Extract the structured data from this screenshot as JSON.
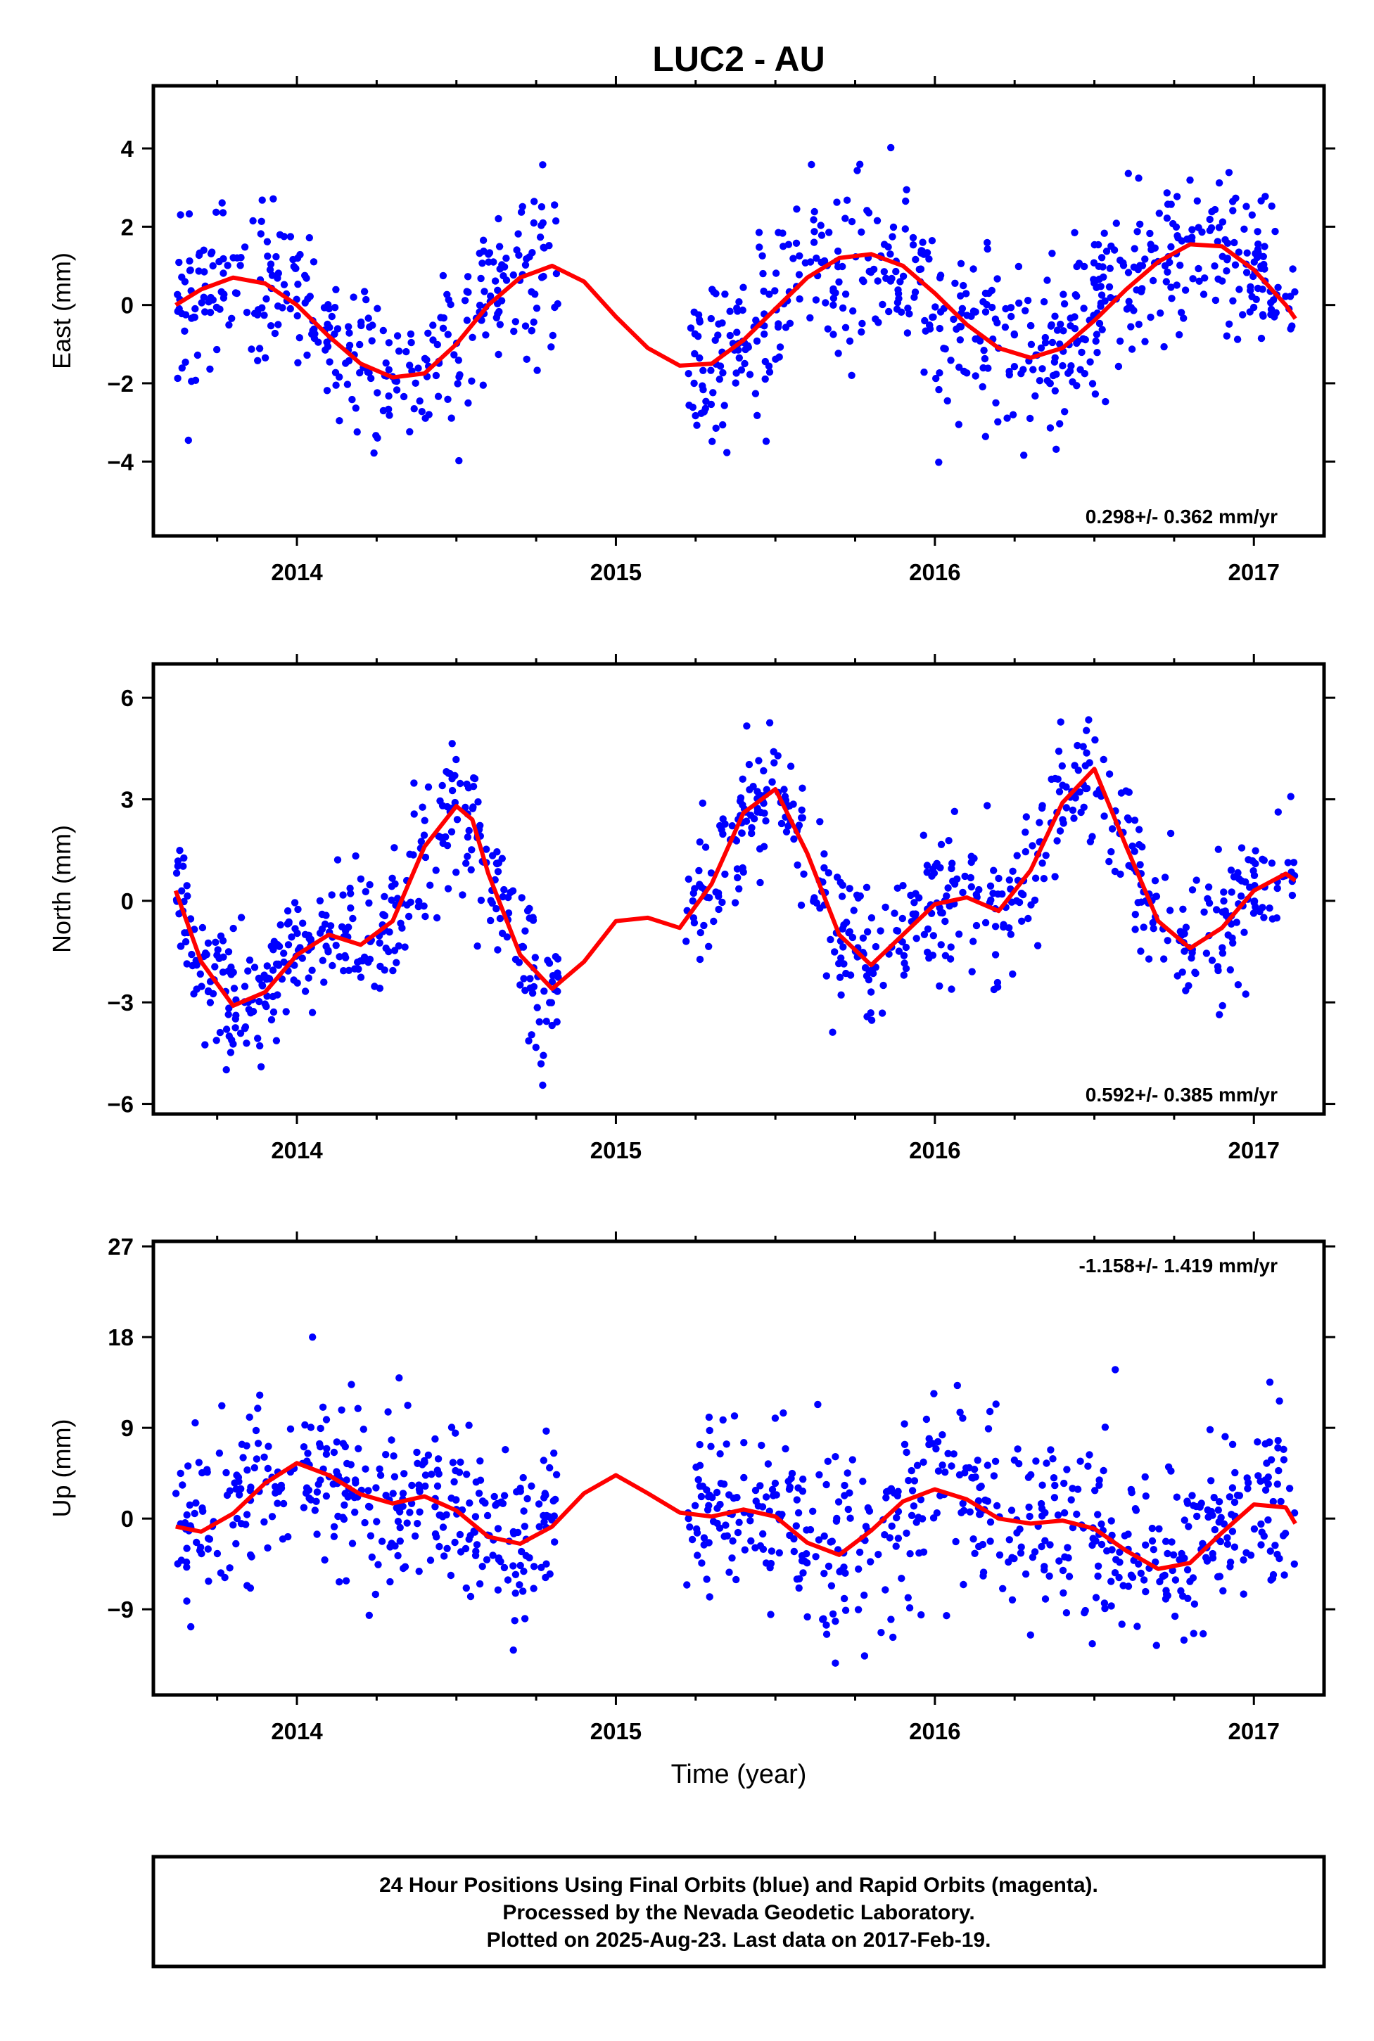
{
  "title": "LUC2 - AU",
  "xlabel": "Time (year)",
  "footer": {
    "line1": "24 Hour Positions Using Final Orbits (blue) and Rapid Orbits (magenta).",
    "line2": "Processed by the Nevada Geodetic Laboratory.",
    "line3": "Plotted on 2025-Aug-23. Last data on 2017-Feb-19."
  },
  "colors": {
    "points": "#0000ff",
    "fit": "#ff0000",
    "frame": "#000000"
  },
  "chart_data": [
    {
      "type": "scatter",
      "panel": "east",
      "ylabel": "East (mm)",
      "rate_label": "0.298+/- 0.362 mm/yr",
      "xlim": [
        2013.55,
        2017.22
      ],
      "ylim": [
        -5.9,
        5.6
      ],
      "x_ticks": [
        2014,
        2015,
        2016,
        2017
      ],
      "y_ticks": [
        -4,
        -2,
        0,
        2,
        4
      ],
      "y_tick_labels": [
        "−4",
        "−2",
        "0",
        "2",
        "4"
      ],
      "data_gap": [
        2014.82,
        2015.22
      ],
      "points_series": {
        "name": "Final Orbits",
        "color": "#0000ff",
        "approx_count": 900,
        "noise_sd_mm": 1.05
      },
      "fit": {
        "color": "#ff0000",
        "x": [
          2013.62,
          2013.7,
          2013.8,
          2013.9,
          2014.0,
          2014.1,
          2014.2,
          2014.3,
          2014.4,
          2014.5,
          2014.6,
          2014.7,
          2014.8,
          2014.9,
          2015.0,
          2015.1,
          2015.2,
          2015.3,
          2015.4,
          2015.5,
          2015.6,
          2015.7,
          2015.8,
          2015.9,
          2016.0,
          2016.1,
          2016.2,
          2016.3,
          2016.4,
          2016.5,
          2016.6,
          2016.7,
          2016.8,
          2016.9,
          2017.0,
          2017.1,
          2017.13
        ],
        "y": [
          0.0,
          0.4,
          0.7,
          0.55,
          0.0,
          -0.8,
          -1.5,
          -1.85,
          -1.75,
          -1.0,
          0.0,
          0.7,
          1.0,
          0.6,
          -0.3,
          -1.1,
          -1.55,
          -1.5,
          -0.9,
          -0.1,
          0.7,
          1.2,
          1.3,
          1.0,
          0.3,
          -0.5,
          -1.1,
          -1.35,
          -1.1,
          -0.4,
          0.4,
          1.1,
          1.55,
          1.5,
          0.9,
          0.0,
          -0.35
        ]
      }
    },
    {
      "type": "scatter",
      "panel": "north",
      "ylabel": "North (mm)",
      "rate_label": "0.592+/- 0.385 mm/yr",
      "xlim": [
        2013.55,
        2017.22
      ],
      "ylim": [
        -6.3,
        7.0
      ],
      "x_ticks": [
        2014,
        2015,
        2016,
        2017
      ],
      "y_ticks": [
        -6,
        -3,
        0,
        3,
        6
      ],
      "y_tick_labels": [
        "−6",
        "−3",
        "0",
        "3",
        "6"
      ],
      "data_gap": [
        2014.82,
        2015.22
      ],
      "points_series": {
        "name": "Final Orbits",
        "color": "#0000ff",
        "approx_count": 900,
        "noise_sd_mm": 1.0
      },
      "fit": {
        "color": "#ff0000",
        "x": [
          2013.62,
          2013.7,
          2013.8,
          2013.9,
          2014.0,
          2014.1,
          2014.2,
          2014.3,
          2014.4,
          2014.5,
          2014.55,
          2014.6,
          2014.7,
          2014.8,
          2014.9,
          2015.0,
          2015.1,
          2015.2,
          2015.3,
          2015.4,
          2015.5,
          2015.6,
          2015.7,
          2015.8,
          2015.9,
          2016.0,
          2016.1,
          2016.2,
          2016.3,
          2016.4,
          2016.5,
          2016.6,
          2016.7,
          2016.8,
          2016.9,
          2017.0,
          2017.1,
          2017.13
        ],
        "y": [
          0.3,
          -1.8,
          -3.1,
          -2.7,
          -1.6,
          -1.0,
          -1.3,
          -0.6,
          1.6,
          2.8,
          2.4,
          0.8,
          -1.6,
          -2.6,
          -1.8,
          -0.6,
          -0.5,
          -0.8,
          0.5,
          2.6,
          3.3,
          1.4,
          -1.0,
          -1.9,
          -1.0,
          -0.1,
          0.1,
          -0.3,
          0.9,
          2.9,
          3.9,
          1.6,
          -0.6,
          -1.4,
          -0.8,
          0.3,
          0.8,
          0.6
        ]
      }
    },
    {
      "type": "scatter",
      "panel": "up",
      "ylabel": "Up (mm)",
      "rate_label": "-1.158+/- 1.419 mm/yr",
      "xlim": [
        2013.55,
        2017.22
      ],
      "ylim": [
        -17.5,
        27.5
      ],
      "x_ticks": [
        2014,
        2015,
        2016,
        2017
      ],
      "y_ticks": [
        -9,
        0,
        9,
        18,
        27
      ],
      "y_tick_labels": [
        "−9",
        "0",
        "9",
        "18",
        "27"
      ],
      "data_gap": [
        2014.82,
        2015.22
      ],
      "points_series": {
        "name": "Final Orbits",
        "color": "#0000ff",
        "approx_count": 900,
        "noise_sd_mm": 4.5
      },
      "fit": {
        "color": "#ff0000",
        "x": [
          2013.62,
          2013.7,
          2013.8,
          2013.9,
          2014.0,
          2014.1,
          2014.2,
          2014.3,
          2014.4,
          2014.5,
          2014.6,
          2014.7,
          2014.8,
          2014.9,
          2015.0,
          2015.1,
          2015.2,
          2015.3,
          2015.4,
          2015.5,
          2015.6,
          2015.7,
          2015.8,
          2015.9,
          2016.0,
          2016.1,
          2016.2,
          2016.3,
          2016.4,
          2016.5,
          2016.6,
          2016.7,
          2016.8,
          2016.9,
          2017.0,
          2017.1,
          2017.13
        ],
        "y": [
          -0.8,
          -1.3,
          0.5,
          3.5,
          5.5,
          4.3,
          2.4,
          1.5,
          2.2,
          0.8,
          -1.8,
          -2.5,
          -0.8,
          2.5,
          4.3,
          2.5,
          0.6,
          0.2,
          0.9,
          0.2,
          -2.4,
          -3.6,
          -1.2,
          1.7,
          2.9,
          1.9,
          0.0,
          -0.5,
          -0.2,
          -1.0,
          -3.2,
          -5.0,
          -4.4,
          -1.4,
          1.4,
          1.1,
          -0.5
        ]
      }
    }
  ]
}
